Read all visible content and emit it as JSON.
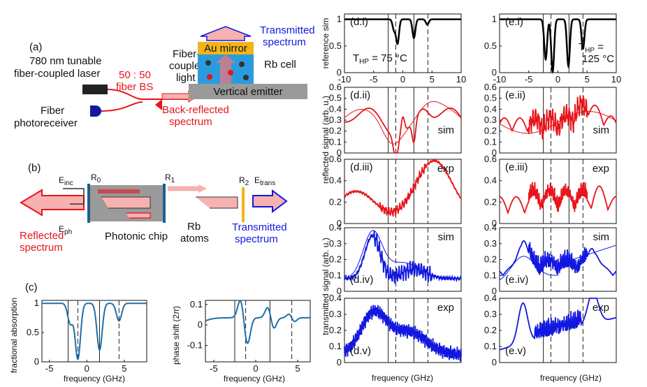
{
  "colors": {
    "red": "#e8141a",
    "blue": "#1218e0",
    "teal": "#1f6fa8",
    "pink": "#f6b1b0",
    "gold": "#f2b418",
    "gray": "#9a9a9a",
    "black": "#000000"
  },
  "panel_a": {
    "label": "(a)",
    "laser": "780 nm tunable fiber-coupled laser",
    "bs": "50 : 50 fiber BS",
    "photoreceiver": "Fiber photoreceiver",
    "fiber_light": "Fiber-coupled light",
    "mirror": "Au mirror",
    "cell": "Rb cell",
    "emitter": "Vertical emitter",
    "transmitted": "Transmitted spectrum",
    "backreflected": "Back-reflected spectrum"
  },
  "panel_b": {
    "label": "(b)",
    "einc": "E_inc",
    "eph": "E_ph",
    "etrans": "E_trans",
    "r0": "R_0",
    "r1": "R_1",
    "r2": "R_2",
    "chip": "Photonic chip",
    "atoms": "Rb atoms",
    "reflected": "Reflected spectrum",
    "transmitted": "Transmitted spectrum"
  },
  "panel_c": {
    "label": "(c)",
    "ylabel_left": "fractional absorption",
    "ylabel_right": "phase shift (2π)",
    "xlabel": "frequency (GHz)"
  },
  "panel_de": {
    "di": "(d.i)",
    "dii": "(d.ii)",
    "diii": "(d.iii)",
    "div": "(d.iv)",
    "dv": "(d.v)",
    "ei": "(e.i)",
    "eii": "(e.ii)",
    "eiii": "(e.iii)",
    "eiv": "(e.iv)",
    "ev": "(e.v)",
    "sim": "sim",
    "exp": "exp",
    "t75": "T_HP = 75 °C",
    "t125": "T_HP = 125 °C",
    "ylabel_ref": "reference sim",
    "ylabel_refl": "reflected signal (arb. u.)",
    "ylabel_trans": "transmitted signal (arb. u.)",
    "xlabel": "frequency (GHz)"
  },
  "chart_data": [
    {
      "type": "line",
      "id": "c-left",
      "title": "",
      "xlabel": "frequency (GHz)",
      "ylabel": "fractional absorption",
      "xlim": [
        -6,
        8
      ],
      "ylim": [
        0,
        1.05
      ],
      "xticks": [
        -5,
        0,
        5
      ],
      "yticks": [
        0,
        0.5,
        1
      ],
      "dips": [
        {
          "x": -2.2,
          "depth": 0.35,
          "w": 0.35
        },
        {
          "x": -1.2,
          "depth": 0.95,
          "w": 0.35
        },
        {
          "x": 1.7,
          "depth": 0.8,
          "w": 0.35
        },
        {
          "x": 4.3,
          "depth": 0.3,
          "w": 0.35
        }
      ],
      "markers": [
        -2.5,
        -1.2,
        1.7,
        4.3
      ]
    },
    {
      "type": "line",
      "id": "c-right",
      "xlabel": "frequency (GHz)",
      "ylabel": "phase shift (2π)",
      "xlim": [
        -6,
        6.5
      ],
      "ylim": [
        -0.18,
        0.12
      ],
      "xticks": [
        -5,
        0,
        5
      ],
      "yticks": [
        -0.1,
        0,
        0.1
      ],
      "markers": [
        -2.5,
        -1.2,
        1.7,
        4.3
      ]
    },
    {
      "type": "line",
      "id": "d-i",
      "xlim": [
        -10,
        10
      ],
      "ylim": [
        0,
        1.1
      ],
      "xticks": [
        -10,
        -5,
        0,
        5,
        10
      ],
      "yticks": [
        0,
        0.5,
        1
      ],
      "dips": [
        {
          "x": -1.5,
          "depth": 0.2
        },
        {
          "x": -0.9,
          "depth": 0.45
        },
        {
          "x": 1.9,
          "depth": 0.35
        },
        {
          "x": 4.2,
          "depth": 0.1
        }
      ],
      "markers": [
        -2.5,
        -1.2,
        1.9,
        4.3
      ]
    },
    {
      "type": "line",
      "id": "e-i",
      "xlim": [
        -10,
        10
      ],
      "ylim": [
        0,
        1.1
      ],
      "xticks": [
        -10,
        -5,
        0,
        5,
        10
      ],
      "yticks": [
        0,
        0.5,
        1
      ],
      "dips": [
        {
          "x": -2.1,
          "depth": 0.75
        },
        {
          "x": -0.9,
          "depth": 0.98
        },
        {
          "x": 1.8,
          "depth": 0.88
        },
        {
          "x": 4.3,
          "depth": 0.55
        }
      ],
      "markers": [
        -2.5,
        -1.2,
        1.9,
        4.3
      ]
    },
    {
      "type": "line",
      "id": "d-ii",
      "xlim": [
        -10,
        10
      ],
      "ylim": [
        0,
        0.6
      ],
      "yticks": [
        0,
        0.1,
        0.2,
        0.3,
        0.4,
        0.5,
        0.6
      ],
      "series": [
        {
          "name": "sim"
        },
        {
          "name": "sim-envelope"
        }
      ]
    },
    {
      "type": "line",
      "id": "e-ii",
      "xlim": [
        -10,
        10
      ],
      "ylim": [
        0,
        0.6
      ],
      "yticks": [
        0,
        0.1,
        0.2,
        0.3,
        0.4,
        0.5,
        0.6
      ],
      "series": [
        {
          "name": "sim"
        },
        {
          "name": "sim-envelope"
        }
      ]
    },
    {
      "type": "line",
      "id": "d-iii",
      "xlim": [
        -10,
        10
      ],
      "ylim": [
        0,
        0.6
      ],
      "yticks": [
        0,
        0.2,
        0.4,
        0.6
      ],
      "series": [
        {
          "name": "exp"
        }
      ]
    },
    {
      "type": "line",
      "id": "e-iii",
      "xlim": [
        -10,
        10
      ],
      "ylim": [
        0,
        0.6
      ],
      "yticks": [
        0,
        0.2,
        0.4,
        0.6
      ],
      "series": [
        {
          "name": "exp"
        }
      ]
    },
    {
      "type": "line",
      "id": "d-iv",
      "xlim": [
        -10,
        10
      ],
      "ylim": [
        0,
        0.4
      ],
      "yticks": [
        0,
        0.1,
        0.2,
        0.3,
        0.4
      ],
      "series": [
        {
          "name": "sim"
        },
        {
          "name": "sim-envelope"
        }
      ]
    },
    {
      "type": "line",
      "id": "e-iv",
      "xlim": [
        -10,
        10
      ],
      "ylim": [
        0,
        0.4
      ],
      "yticks": [
        0,
        0.1,
        0.2,
        0.3,
        0.4
      ],
      "series": [
        {
          "name": "sim"
        },
        {
          "name": "sim-envelope"
        }
      ]
    },
    {
      "type": "line",
      "id": "d-v",
      "xlim": [
        -10,
        10
      ],
      "ylim": [
        0,
        0.4
      ],
      "yticks": [
        0,
        0.1,
        0.2,
        0.3,
        0.4
      ],
      "series": [
        {
          "name": "exp"
        }
      ]
    },
    {
      "type": "line",
      "id": "e-v",
      "xlim": [
        -10,
        10
      ],
      "ylim": [
        0,
        0.4
      ],
      "yticks": [
        0,
        0.1,
        0.2,
        0.3,
        0.4
      ],
      "series": [
        {
          "name": "exp"
        }
      ]
    }
  ]
}
